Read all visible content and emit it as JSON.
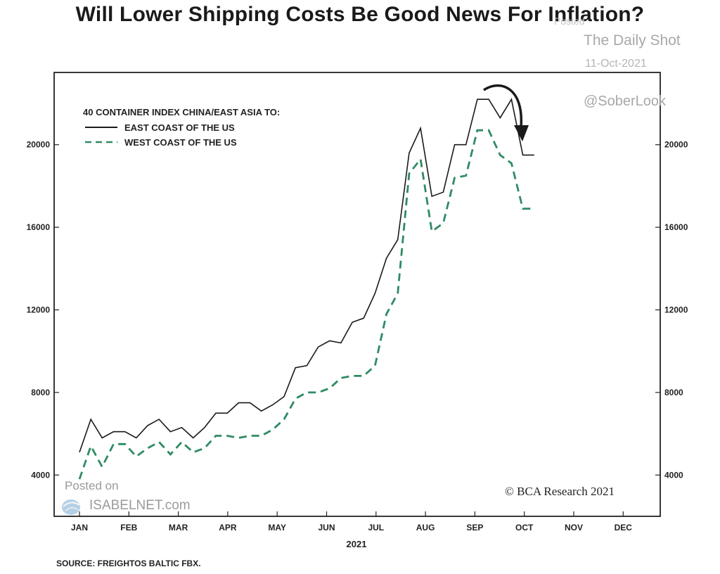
{
  "title": "Will Lower Shipping Costs Be Good News For Inflation?",
  "watermarks": {
    "posted_small": "Posted",
    "daily_shot": "The Daily Shot",
    "date": "11-Oct-2021",
    "handle": "@SoberLook",
    "posted_on": "Posted on",
    "isabelnet": "ISABELNET.com"
  },
  "source": "SOURCE: FREIGHTOS BALTIC FBX.",
  "credit": "© BCA Research 2021",
  "colors": {
    "east": "#1a1a1a",
    "west": "#2e8b62",
    "arrow": "#1a1a1a"
  },
  "chart_data": {
    "type": "line",
    "legend_title": "40 CONTAINER INDEX CHINA/EAST ASIA TO:",
    "legend_placement": "top-left",
    "xlabel": "2021",
    "x_ticks": [
      "JAN",
      "FEB",
      "MAR",
      "APR",
      "MAY",
      "JUN",
      "JUL",
      "AUG",
      "SEP",
      "OCT",
      "NOV",
      "DEC"
    ],
    "xlim": [
      0,
      12
    ],
    "y_ticks": [
      4000,
      8000,
      12000,
      16000,
      20000
    ],
    "ylim": [
      2000,
      23500
    ],
    "grid": false,
    "series": [
      {
        "name": "EAST COAST OF THE US",
        "style": "solid",
        "x": [
          0.0,
          0.23,
          0.46,
          0.69,
          0.92,
          1.15,
          1.38,
          1.61,
          1.84,
          2.07,
          2.3,
          2.53,
          2.76,
          2.99,
          3.22,
          3.45,
          3.68,
          3.91,
          4.14,
          4.37,
          4.6,
          4.83,
          5.06,
          5.29,
          5.52,
          5.75,
          5.98,
          6.21,
          6.44,
          6.67,
          6.9,
          7.13,
          7.36,
          7.59,
          7.82,
          8.05,
          8.28,
          8.51,
          8.74,
          8.97,
          9.2
        ],
        "y": [
          5100,
          6700,
          5800,
          6100,
          6100,
          5800,
          6400,
          6700,
          6100,
          6300,
          5800,
          6300,
          7000,
          7000,
          7500,
          7500,
          7100,
          7400,
          7800,
          9200,
          9300,
          10200,
          10500,
          10400,
          11400,
          11600,
          12800,
          14500,
          15400,
          19600,
          20800,
          17500,
          17700,
          20000,
          20000,
          22200,
          22200,
          21300,
          22200,
          19500,
          19500
        ]
      },
      {
        "name": "WEST COAST OF THE US",
        "style": "dashed",
        "x": [
          0.0,
          0.23,
          0.46,
          0.69,
          0.92,
          1.15,
          1.38,
          1.61,
          1.84,
          2.07,
          2.3,
          2.53,
          2.76,
          2.99,
          3.22,
          3.45,
          3.68,
          3.91,
          4.14,
          4.37,
          4.6,
          4.83,
          5.06,
          5.29,
          5.52,
          5.75,
          5.98,
          6.21,
          6.44,
          6.67,
          6.9,
          7.13,
          7.36,
          7.59,
          7.82,
          8.05,
          8.28,
          8.51,
          8.74,
          8.97,
          9.2
        ],
        "y": [
          3800,
          5400,
          4400,
          5500,
          5500,
          4900,
          5300,
          5600,
          5000,
          5600,
          5100,
          5300,
          5900,
          5900,
          5800,
          5900,
          5900,
          6200,
          6700,
          7700,
          8000,
          8000,
          8200,
          8700,
          8800,
          8800,
          9300,
          11800,
          12800,
          18600,
          19300,
          15800,
          16200,
          18400,
          18500,
          20700,
          20700,
          19500,
          19100,
          16900,
          16900
        ]
      }
    ],
    "annotations": [
      "downward curved arrow near the September peak"
    ]
  }
}
